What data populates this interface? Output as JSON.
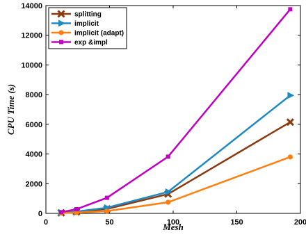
{
  "chart_data": {
    "type": "line",
    "title": "",
    "xlabel": "Mesh",
    "ylabel": "CPU Time (s)",
    "xlim": [
      0,
      200
    ],
    "ylim": [
      0,
      14000
    ],
    "xticks": [
      0,
      50,
      100,
      150,
      200
    ],
    "yticks": [
      0,
      2000,
      4000,
      6000,
      8000,
      10000,
      12000,
      14000
    ],
    "grid": false,
    "legend_position": "top-left",
    "x": [
      12,
      24,
      48,
      96,
      192
    ],
    "series": [
      {
        "name": "splitting",
        "color": "#8b3a0f",
        "marker": "x",
        "values": [
          40,
          100,
          300,
          1300,
          6150
        ]
      },
      {
        "name": "implicit",
        "color": "#1f8ac0",
        "marker": "triangle-right",
        "values": [
          50,
          120,
          380,
          1450,
          7950
        ]
      },
      {
        "name": "implicit (adapt)",
        "color": "#ff7f0e",
        "marker": "circle",
        "values": [
          20,
          50,
          150,
          750,
          3800
        ]
      },
      {
        "name": "exp &impl",
        "color": "#bf00bf",
        "marker": "square",
        "values": [
          80,
          280,
          1050,
          3820,
          13750
        ]
      }
    ]
  }
}
